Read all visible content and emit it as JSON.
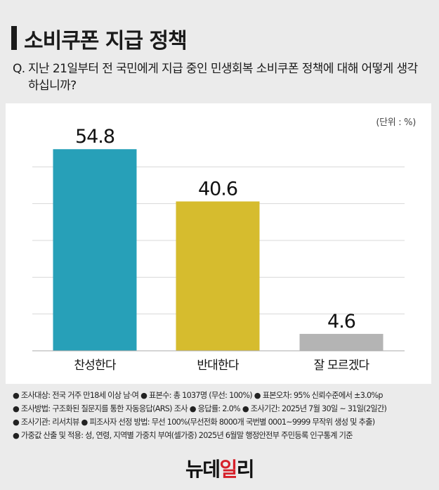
{
  "header": {
    "title": "소비쿠폰 지급 정책",
    "question_mark": "Q.",
    "question": "지난 21일부터 전 국민에게 지급 중인 민생회복 소비쿠폰 정책에 대해 어떻게 생각하십니까?"
  },
  "unit_label": "(단위 : %)",
  "chart_data": {
    "type": "bar",
    "categories": [
      "찬성한다",
      "반대한다",
      "잘 모르겠다"
    ],
    "values": [
      54.8,
      40.6,
      4.6
    ],
    "value_labels": [
      "54.8",
      "40.6",
      "4.6"
    ],
    "colors": [
      "#27a0b8",
      "#d6bc2e",
      "#b4b4b4"
    ],
    "ylim": [
      0,
      60
    ],
    "grid": true,
    "title": "",
    "xlabel": "",
    "ylabel": ""
  },
  "notes": [
    "● 조사대상: 전국 거주 만18세 이상 남·여 ● 표본수: 총 1037명 (무선: 100%) ● 표본오차: 95% 신뢰수준에서 ±3.0%p",
    "● 조사방법: 구조화된 질문지를 통한 자동응답(ARS) 조사 ● 응답률: 2.0% ● 조사기간: 2025년 7월 30일 ~ 31일(2일간)",
    "● 조사기관: 리서치뷰 ● 피조사자 선정 방법: 무선 100%(무선전화 8000개 국번별 0001~9999 무작위 생성 및 추출)",
    "● 가중값 산출 및 적용: 성, 연령, 지역별 가중치 부여(셀가중) 2025년 6월말 행정안전부 주민등록 인구통계 기준"
  ],
  "logo": {
    "part1": "뉴데",
    "part2": "일",
    "part3": "리"
  }
}
